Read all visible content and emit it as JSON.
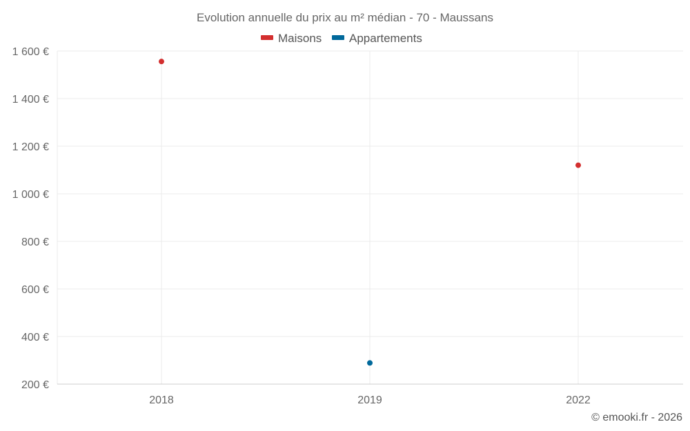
{
  "chart_data": {
    "type": "scatter",
    "title": "Evolution annuelle du prix au m² médian - 70 - Maussans",
    "categories": [
      "2018",
      "2019",
      "2022"
    ],
    "yticks": [
      200,
      400,
      600,
      800,
      1000,
      1200,
      1400,
      1600
    ],
    "ytick_labels": [
      "200 €",
      "400 €",
      "600 €",
      "800 €",
      "1 000 €",
      "1 200 €",
      "1 400 €",
      "1 600 €"
    ],
    "ylim": [
      200,
      1600
    ],
    "grid": true,
    "legend_position": "top-center",
    "series": [
      {
        "name": "Maisons",
        "color": "#d32f2f",
        "points": [
          {
            "x": "2018",
            "y": 1556
          },
          {
            "x": "2022",
            "y": 1120
          }
        ]
      },
      {
        "name": "Appartements",
        "color": "#01699b",
        "points": [
          {
            "x": "2019",
            "y": 289
          }
        ]
      }
    ],
    "credit": "© emooki.fr - 2026"
  }
}
